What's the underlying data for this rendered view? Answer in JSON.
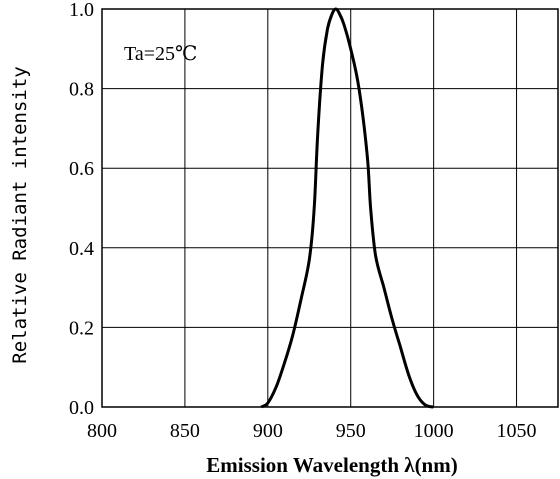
{
  "chart_data": {
    "type": "line",
    "annotation": "Ta=25℃",
    "xlabel": "Emission Wavelength λ(nm)",
    "ylabel": "Relative Radiant intensity",
    "xlim": [
      800,
      1075
    ],
    "ylim": [
      0,
      1.0
    ],
    "x_ticks": [
      800,
      850,
      900,
      950,
      1000,
      1050
    ],
    "y_ticks": [
      0.0,
      0.2,
      0.4,
      0.6,
      0.8,
      1.0
    ],
    "x_tick_labels": [
      "800",
      "850",
      "900",
      "950",
      "1000",
      "1050"
    ],
    "y_tick_labels": [
      "0.0",
      "0.2",
      "0.4",
      "0.6",
      "0.8",
      "1.0"
    ],
    "grid": true,
    "series": [
      {
        "x": [
          896,
          900,
          905,
          910,
          915,
          920,
          925,
          928,
          930,
          933,
          936,
          939,
          941,
          943,
          946,
          950,
          955,
          960,
          962,
          965,
          970,
          975,
          980,
          985,
          990,
          995,
          1000
        ],
        "y": [
          0.0,
          0.01,
          0.05,
          0.11,
          0.18,
          0.27,
          0.37,
          0.5,
          0.68,
          0.86,
          0.95,
          0.99,
          1.0,
          0.99,
          0.96,
          0.9,
          0.8,
          0.63,
          0.5,
          0.38,
          0.3,
          0.22,
          0.15,
          0.08,
          0.03,
          0.005,
          0.0
        ]
      }
    ]
  }
}
